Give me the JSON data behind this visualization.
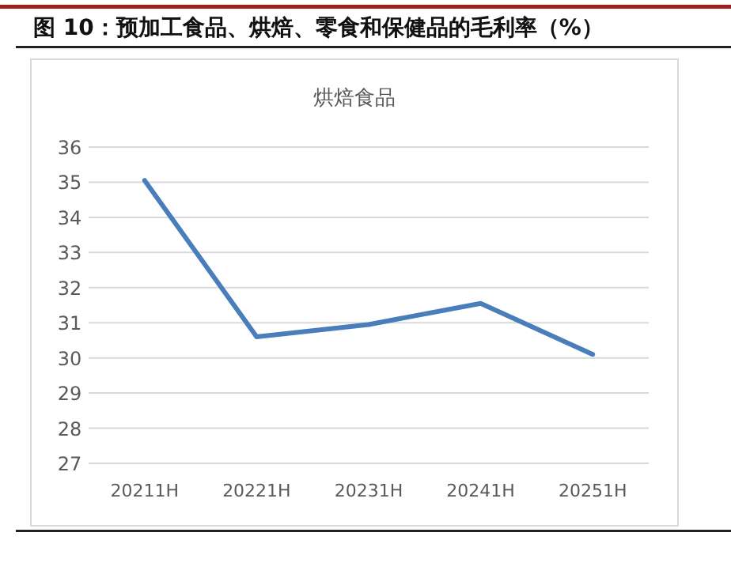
{
  "chart_data": {
    "type": "line",
    "title": "图 10：预加工食品、烘焙、零食和保健品的毛利率（%）",
    "subtitle": "烘焙食品",
    "categories": [
      "20211H",
      "20221H",
      "20231H",
      "20241H",
      "20251H"
    ],
    "series": [
      {
        "color": "#4a7ebb",
        "values": [
          35.05,
          30.6,
          30.95,
          31.55,
          30.1
        ]
      }
    ],
    "ylim": [
      27,
      36
    ],
    "yticks": [
      27,
      28,
      29,
      30,
      31,
      32,
      33,
      34,
      35,
      36
    ],
    "grid": "y"
  }
}
